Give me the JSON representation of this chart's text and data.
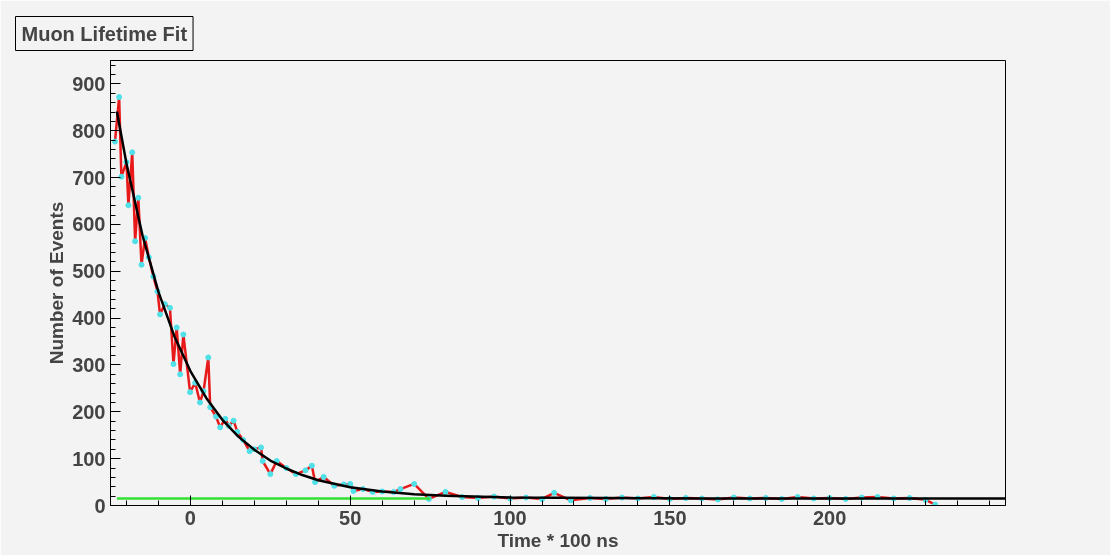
{
  "chart_data": {
    "type": "line",
    "title": "Muon Lifetime Fit",
    "xlabel": "Time * 100 ns",
    "ylabel": "Number of Events",
    "xlim": [
      -25,
      255
    ],
    "ylim": [
      0,
      950
    ],
    "xticks": [
      0,
      50,
      100,
      150,
      200
    ],
    "yticks": [
      0,
      100,
      200,
      300,
      400,
      500,
      600,
      700,
      800,
      900
    ],
    "grid": false,
    "series": [
      {
        "color": "#e8191a",
        "marker": "circle",
        "x": [
          -23.6,
          -22.3,
          -21.6,
          -20,
          -19.4,
          -18.2,
          -17.3,
          -16.3,
          -15.3,
          -14.2,
          -13,
          -11.6,
          -10.3,
          -9.5,
          -8,
          -6.4,
          -5.3,
          -4.3,
          -3.2,
          -2.2,
          -0.1,
          1.5,
          3,
          4.1,
          5.6,
          6.2,
          8,
          9.3,
          10.9,
          12,
          13.5,
          14.7,
          16.5,
          18.5,
          20,
          22.1,
          22.6,
          25,
          27,
          30,
          33,
          36,
          38,
          39,
          41.7,
          45,
          48,
          50,
          51,
          54,
          57,
          60,
          63.6,
          65.7,
          70,
          74.6,
          79.8,
          85,
          90,
          95,
          100,
          105,
          110,
          113.8,
          119,
          125,
          130,
          135,
          140,
          145,
          150,
          155,
          160,
          165,
          170,
          175,
          180,
          185,
          190,
          195,
          200,
          205,
          210,
          215,
          220,
          225,
          230,
          233
        ],
        "values": [
          777,
          872,
          702,
          733,
          641,
          754,
          564,
          657,
          514,
          571,
          530,
          489,
          457,
          408,
          430,
          422,
          302,
          380,
          280,
          365,
          242,
          262,
          220,
          244,
          316,
          210,
          190,
          167,
          185,
          170,
          181,
          157,
          140,
          116,
          120,
          124,
          95,
          67,
          95,
          80,
          67,
          75,
          85,
          50,
          61,
          42,
          45,
          46,
          31,
          35,
          29,
          30,
          29,
          35,
          46,
          14,
          29,
          18,
          16,
          19,
          15,
          17,
          14,
          27,
          11,
          16,
          14,
          17,
          15,
          18,
          14,
          16,
          15,
          13,
          17,
          15,
          16,
          14,
          18,
          15,
          16,
          14,
          17,
          18,
          15,
          16,
          12,
          2
        ]
      },
      {
        "color": "#000000",
        "x": [
          -23,
          -20,
          -15,
          -10,
          -5,
          0,
          5,
          10,
          15,
          20,
          25,
          30,
          35,
          40,
          50,
          60,
          70,
          80,
          100,
          130,
          160,
          200,
          255
        ],
        "values": [
          841,
          730,
          577,
          456,
          361,
          287,
          229,
          183,
          147,
          119,
          96,
          79,
          65,
          54,
          39,
          30,
          24,
          21,
          17,
          16,
          15,
          15,
          15
        ]
      },
      {
        "color": "#33e033",
        "x": [
          -23,
          75
        ],
        "values": [
          15,
          15
        ]
      }
    ]
  }
}
